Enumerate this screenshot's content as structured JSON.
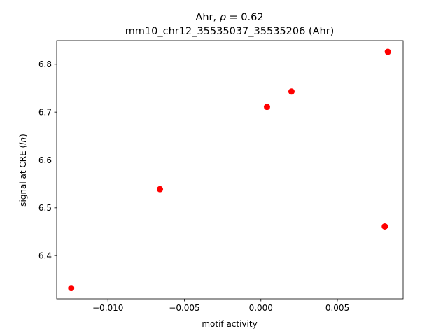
{
  "chart_data": {
    "type": "scatter",
    "title_line1_prefix": "Ahr, ",
    "title_rho_symbol": "ρ",
    "title_rho_value": " = 0.62",
    "title_line2": "mm10_chr12_35535037_35535206 (Ahr)",
    "xlabel": "motif activity",
    "ylabel_prefix": "signal at CRE (",
    "ylabel_italic": "ln",
    "ylabel_suffix": ")",
    "xlim": [
      -0.01335,
      0.0093
    ],
    "ylim": [
      6.3095,
      6.8495
    ],
    "xticks": [
      -0.01,
      -0.005,
      0.0,
      0.005
    ],
    "xtick_labels": [
      "−0.010",
      "−0.005",
      "0.000",
      "0.005"
    ],
    "yticks": [
      6.4,
      6.5,
      6.6,
      6.7,
      6.8
    ],
    "ytick_labels": [
      "6.4",
      "6.5",
      "6.6",
      "6.7",
      "6.8"
    ],
    "marker_color": "#ff0000",
    "points": [
      {
        "x": -0.0124,
        "y": 6.332
      },
      {
        "x": -0.0066,
        "y": 6.539
      },
      {
        "x": 0.0004,
        "y": 6.711
      },
      {
        "x": 0.002,
        "y": 6.743
      },
      {
        "x": 0.0081,
        "y": 6.461
      },
      {
        "x": 0.0083,
        "y": 6.826
      }
    ]
  }
}
